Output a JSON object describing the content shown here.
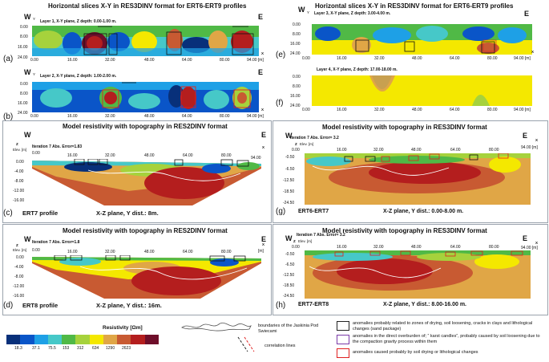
{
  "left": {
    "header": "Horizontal slices X-Y in RES3DINV format for ERT6-ERT9 profiles",
    "slice_a": {
      "letter": "(a)",
      "layer": "Layer 1, X-Y plane, Z depth: 0.00-1.00 m.",
      "W": "W",
      "Y": "Y",
      "E": "E",
      "X": "X",
      "y_ticks": [
        "0.00",
        "8.00",
        "16.00",
        "24.00"
      ],
      "x_ticks": [
        "0.00",
        "16.00",
        "32.00",
        "48.00",
        "64.00",
        "80.00"
      ],
      "x_end": "94.00 [m]"
    },
    "slice_b": {
      "letter": "(b)",
      "layer": "Layer 2, X-Y plane, Z depth: 1.00-2.00 m.",
      "W": "W",
      "Y": "Y",
      "E": "E",
      "X": "X",
      "y_ticks": [
        "0.00",
        "8.00",
        "16.00",
        "24.00"
      ],
      "x_ticks": [
        "0.00",
        "16.00",
        "32.00",
        "48.00",
        "64.00",
        "80.00"
      ],
      "x_end": "94.00 [m]"
    },
    "model_header": "Model resistivity with topography in RES2DINV format",
    "panel_c": {
      "letter": "(c)",
      "W": "W",
      "E": "E",
      "X": "X",
      "Z": "Z",
      "elev": "Elev. [m]",
      "iter": "Iteration 7 Abs. Error=1.83",
      "depth_ticks": [
        "0.00",
        "-4.00",
        "-8.00",
        "-12.00",
        "-16.00"
      ],
      "x_ticks": [
        "0.00",
        "16.00",
        "32.00",
        "48.00",
        "64.00",
        "80.00"
      ],
      "x_end": "94.00",
      "profile": "ERT7 profile",
      "plane": "X-Z plane, Y dist.: 8m."
    },
    "model_header_2": "Model resistivity with topography in RES2DINV format",
    "panel_d": {
      "letter": "(d)",
      "W": "W",
      "E": "E",
      "X": "X",
      "Z": "Z",
      "elev": "Elev. [m]",
      "iter": "Iteration 7 Abs. Error=1.8",
      "depth_ticks": [
        "0.00",
        "-4.00",
        "-8.00",
        "-12.00",
        "-16.00"
      ],
      "x_ticks": [
        "0.00",
        "16.00",
        "32.00",
        "48.00",
        "64.00",
        "80.00"
      ],
      "x_end": "[m]",
      "profile": "ERT8 profile",
      "plane": "X-Z plane, Y dist.: 16m."
    }
  },
  "right": {
    "header": "Horizontal slices X-Y in RES3DINV format for ERT6-ERT9 profiles",
    "slice_e": {
      "letter": "(e)",
      "layer": "Layer 3, X-Y plane, Z depth: 3.00-4.00 m.",
      "W": "W",
      "Y": "Y",
      "E": "E",
      "X": "X",
      "y_ticks": [
        "0.00",
        "8.00",
        "16.00",
        "24.00"
      ],
      "x_ticks": [
        "0.00",
        "16.00",
        "32.00",
        "48.00",
        "64.00",
        "80.00"
      ],
      "x_end": "94.00 [m]"
    },
    "slice_f": {
      "letter": "(f)",
      "layer": "Layer 4, X-Y plane, Z depth: 17.00-18.00 m.",
      "y_ticks": [
        "0.00",
        "8.00",
        "16.00",
        "24.00"
      ],
      "x_ticks": [
        "0.00",
        "16.00",
        "32.00",
        "48.00",
        "64.00",
        "80.00"
      ],
      "x_end": "94.00 [m]"
    },
    "model_header": "Model resistivity with topography in RES3DINV format",
    "panel_g": {
      "letter": "(g)",
      "W": "W",
      "E": "E",
      "X": "X",
      "Z": "Z",
      "elev": "Elev. [m]",
      "iter": "Iteration 7 Abs. Error= 3.2",
      "depth_ticks": [
        "-0.50",
        "-6.50",
        "-12.50",
        "-18.50",
        "-24.50"
      ],
      "x_ticks": [
        "0.00",
        "16.00",
        "32.00",
        "48.00",
        "64.00",
        "80.00"
      ],
      "x_end": "94.00 [m]",
      "profile": "ERT6-ERT7",
      "plane": "X-Z plane, Y dist.: 0.00-8.00 m."
    },
    "model_header_2": "Model resistivity with topography in RES3DINV format",
    "panel_h": {
      "letter": "(h)",
      "W": "W",
      "E": "E",
      "X": "X",
      "Z": "Z",
      "elev": "Elev. [m]",
      "iter": "Iteration 7 Abs. Error= 3.2",
      "depth_ticks": [
        "-0.50",
        "-6.50",
        "-12.50",
        "-18.50",
        "-24.50"
      ],
      "x_ticks": [
        "0.00",
        "16.00",
        "32.00",
        "48.00",
        "64.00",
        "80.00"
      ],
      "x_end": "94.00 [m]",
      "profile": "ERT7-ERT8",
      "plane": "X-Z plane, Y dist.: 8.00-16.00 m."
    }
  },
  "legend": {
    "resistivity_title": "Resistivity  [Ωm]",
    "scale_values": [
      "18.3",
      "37.1",
      "75.5",
      "153",
      "312",
      "634",
      "1290",
      "2623"
    ],
    "scale_colors": [
      "#08307a",
      "#0a55c8",
      "#1ea0e6",
      "#46c8c8",
      "#50b946",
      "#a6d23c",
      "#f4e800",
      "#e0a646",
      "#c85a32",
      "#b41e1e",
      "#6e0e2a"
    ],
    "cave_text": "boundaries of the Jaskinia Pod Swiecami",
    "corr_text": "correlation lines",
    "items": [
      {
        "color": "#222222",
        "text": "anomalies probably related to zones of drying, soil loosening, cracks in clays and lithological changes (sand package)"
      },
      {
        "color": "#7a3aa8",
        "text": "anomalies in the direct overburden of; ” karst candles”, probably caused by soil loosening due to the compaction gravity process within them"
      },
      {
        "color": "#e02020",
        "text": "anomalies caused probably by soil drying or lithological changes"
      }
    ]
  }
}
